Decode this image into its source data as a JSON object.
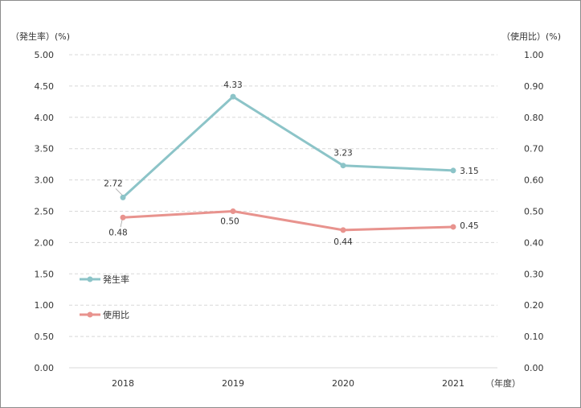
{
  "chart_data": {
    "type": "line",
    "categories": [
      "2018",
      "2019",
      "2020",
      "2021"
    ],
    "x_unit": "（年度）",
    "y_left": {
      "title": "（発生率）(%)",
      "range": [
        0,
        5
      ],
      "ticks": [
        "0.00",
        "0.50",
        "1.00",
        "1.50",
        "2.00",
        "2.50",
        "3.00",
        "3.50",
        "4.00",
        "4.50",
        "5.00"
      ]
    },
    "y_right": {
      "title": "（使用比）(%)",
      "range": [
        0,
        1
      ],
      "ticks": [
        "0.00",
        "0.10",
        "0.20",
        "0.30",
        "0.40",
        "0.50",
        "0.60",
        "0.70",
        "0.80",
        "0.90",
        "1.00"
      ]
    },
    "series": [
      {
        "name": "発生率",
        "axis": "left",
        "values": [
          2.72,
          4.33,
          3.23,
          3.15
        ],
        "labels": [
          "2.72",
          "4.33",
          "3.23",
          "3.15"
        ],
        "color": "#8cc4c8"
      },
      {
        "name": "使用比",
        "axis": "right",
        "values": [
          0.48,
          0.5,
          0.44,
          0.45
        ],
        "labels": [
          "0.48",
          "0.50",
          "0.44",
          "0.45"
        ],
        "color": "#e8938e"
      }
    ],
    "grid": true,
    "grid_style": "dashed",
    "legend_position": "left-inside"
  }
}
